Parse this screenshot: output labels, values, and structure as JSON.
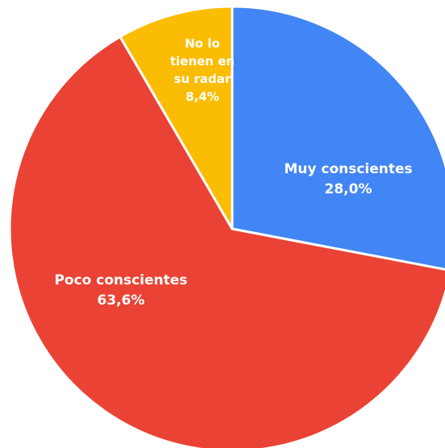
{
  "chart_data": {
    "type": "pie",
    "start_angle_deg": 0,
    "direction": "clockwise",
    "slices": [
      {
        "label": "Muy conscientes",
        "label_lines": [
          "Muy conscientes"
        ],
        "value": 28.0,
        "value_label": "28,0%",
        "color": "#4285F4"
      },
      {
        "label": "Poco conscientes",
        "label_lines": [
          "Poco conscientes"
        ],
        "value": 63.6,
        "value_label": "63,6%",
        "color": "#EA4335"
      },
      {
        "label": "No lo tienen en su radar",
        "label_lines": [
          "No lo",
          "tienen en",
          "su radar"
        ],
        "value": 8.4,
        "value_label": "8,4%",
        "color": "#FBBC04"
      }
    ]
  }
}
